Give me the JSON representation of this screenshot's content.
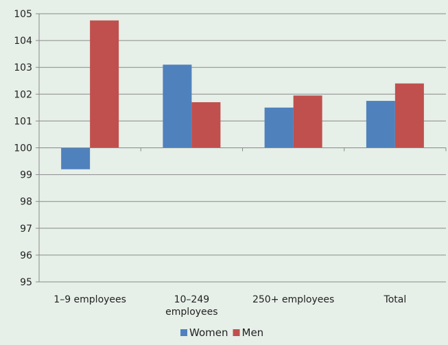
{
  "chart_data": {
    "type": "bar",
    "title": "",
    "xlabel": "",
    "ylabel": "",
    "categories": [
      "1–9 employees",
      "10–249 employees",
      "250+ employees",
      "Total"
    ],
    "category_tick_lines": [
      [
        "1–9 employees"
      ],
      [
        "10–249",
        "employees"
      ],
      [
        "250+ employees"
      ],
      [
        "Total"
      ]
    ],
    "series": [
      {
        "name": "Women",
        "color": "#4f81bd",
        "values": [
          99.2,
          103.1,
          101.5,
          101.75
        ]
      },
      {
        "name": "Men",
        "color": "#c0504d",
        "values": [
          104.75,
          101.7,
          101.95,
          102.4
        ]
      }
    ],
    "ylim": [
      95,
      105
    ],
    "y_ticks": [
      95,
      96,
      97,
      98,
      99,
      100,
      101,
      102,
      103,
      104,
      105
    ],
    "baseline": 100,
    "grid": true,
    "legend": "bottom-center"
  }
}
